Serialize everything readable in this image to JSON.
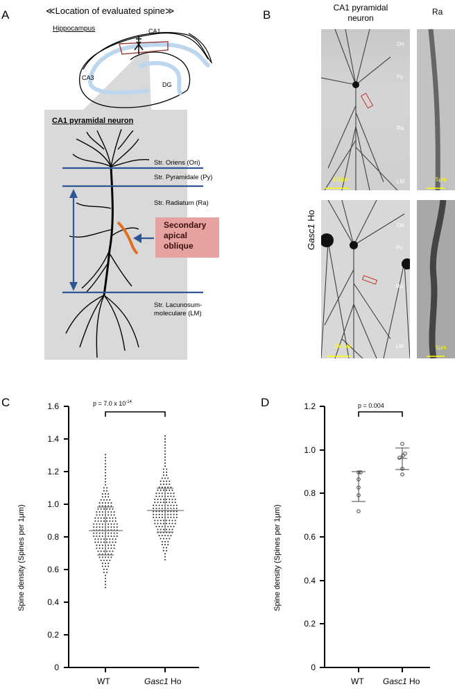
{
  "panelA": {
    "letter": "A",
    "title": "≪Location of evaluated spine≫",
    "hippocampus_label": "Hippocampus",
    "regions": {
      "ca1": "CA1",
      "ca3": "CA3",
      "dg": "DG"
    },
    "neuron_title": "CA1 pyramidal neuron",
    "layers": [
      "Str. Oriens (Ori)",
      "Str. Pyramidale (Py)",
      "Str. Radiatum (Ra)",
      "Str. Lacunosum-",
      "moleculare (LM)"
    ],
    "callout": [
      "Secondary",
      "apical",
      "oblique"
    ],
    "colors": {
      "layer_line": "#2f5597",
      "callout_bg": "#e6a1a1",
      "oblique": "#e07020",
      "ca1_box": "#a0403a",
      "hippo_band": "#bdd7ee"
    }
  },
  "panelB": {
    "letter": "B",
    "col1": [
      "CA1 pyramidal",
      "neuron"
    ],
    "col2": "Ra",
    "row2_label_italic": "Gasc1",
    "row2_label": " Ho",
    "layer_tags": [
      "Ori",
      "Py",
      "Ra",
      "LM"
    ],
    "scale_large": "100μm",
    "scale_small": "5μm",
    "scale_color": "#ffff00"
  },
  "chart_data": [
    {
      "panel": "C",
      "type": "scatter",
      "subtype": "dot plot (beeswarm) with mean ± SD",
      "title": "",
      "xlabel": "",
      "ylabel": "Spine density (Spines per 1μm)",
      "categories": [
        "WT",
        "Gasc1 Ho"
      ],
      "ylim": [
        0,
        1.6
      ],
      "yticks": [
        "0",
        "0.2",
        "0.4",
        "0.6",
        "0.8",
        "1.0",
        "1.2",
        "1.4",
        "1.6"
      ],
      "annotation": "p = 7.0 x 10-14",
      "annotation_base": "p = 7.0 x 10",
      "annotation_exp": "-14",
      "series": [
        {
          "name": "WT",
          "mean": 0.84,
          "sd_upper": 0.98,
          "sd_lower": 0.69,
          "min": 0.49,
          "max": 1.32
        },
        {
          "name": "Gasc1 Ho",
          "mean": 0.96,
          "sd_upper": 1.1,
          "sd_lower": 0.83,
          "min": 0.66,
          "max": 1.42
        }
      ]
    },
    {
      "panel": "D",
      "type": "scatter",
      "subtype": "individual points with mean ± SD",
      "title": "",
      "xlabel": "",
      "ylabel": "Spine density (Spines per 1μm)",
      "categories": [
        "WT",
        "Gasc1 Ho"
      ],
      "ylim": [
        0,
        1.2
      ],
      "yticks": [
        "0",
        "0.2",
        "0.4",
        "0.6",
        "0.8",
        "1.0",
        "1.2"
      ],
      "annotation": "p = 0.004",
      "series": [
        {
          "name": "WT",
          "values": [
            0.9,
            0.89,
            0.866,
            0.827,
            0.792,
            0.72
          ],
          "mean": 0.833,
          "sd_upper": 0.9,
          "sd_lower": 0.764
        },
        {
          "name": "Gasc1 Ho",
          "values": [
            1.03,
            0.984,
            0.975,
            0.965,
            0.914,
            0.888
          ],
          "mean": 0.958,
          "sd_upper": 1.01,
          "sd_lower": 0.91
        }
      ]
    }
  ],
  "panelC": {
    "letter": "C",
    "x_wt": "WT",
    "x_ho_italic": "Gasc1",
    "x_ho": " Ho"
  },
  "panelD": {
    "letter": "D",
    "x_wt": "WT",
    "x_ho_italic": "Gasc1",
    "x_ho": " Ho"
  }
}
